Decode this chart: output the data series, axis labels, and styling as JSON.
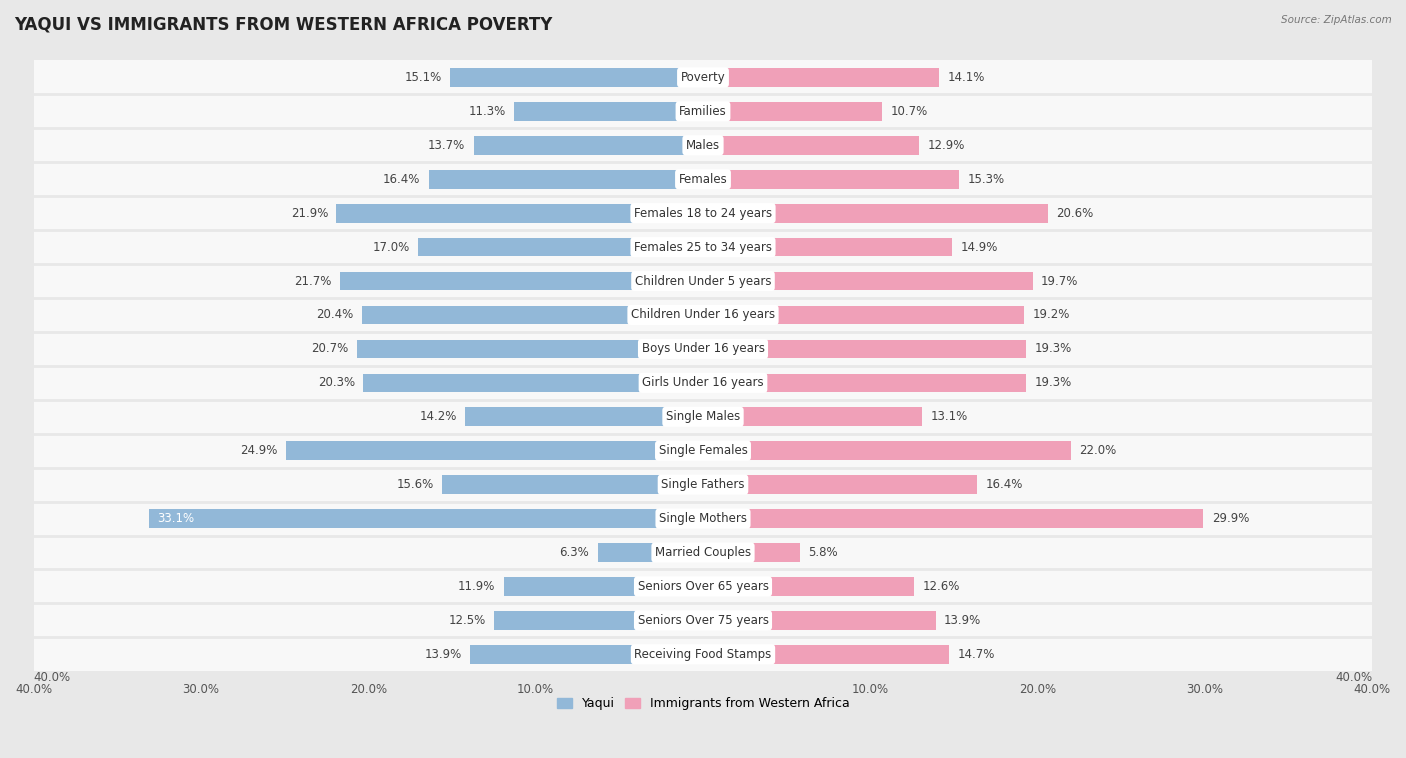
{
  "title": "YAQUI VS IMMIGRANTS FROM WESTERN AFRICA POVERTY",
  "source": "Source: ZipAtlas.com",
  "categories": [
    "Poverty",
    "Families",
    "Males",
    "Females",
    "Females 18 to 24 years",
    "Females 25 to 34 years",
    "Children Under 5 years",
    "Children Under 16 years",
    "Boys Under 16 years",
    "Girls Under 16 years",
    "Single Males",
    "Single Females",
    "Single Fathers",
    "Single Mothers",
    "Married Couples",
    "Seniors Over 65 years",
    "Seniors Over 75 years",
    "Receiving Food Stamps"
  ],
  "yaqui_values": [
    15.1,
    11.3,
    13.7,
    16.4,
    21.9,
    17.0,
    21.7,
    20.4,
    20.7,
    20.3,
    14.2,
    24.9,
    15.6,
    33.1,
    6.3,
    11.9,
    12.5,
    13.9
  ],
  "immigrants_values": [
    14.1,
    10.7,
    12.9,
    15.3,
    20.6,
    14.9,
    19.7,
    19.2,
    19.3,
    19.3,
    13.1,
    22.0,
    16.4,
    29.9,
    5.8,
    12.6,
    13.9,
    14.7
  ],
  "yaqui_color": "#92b8d8",
  "immigrants_color": "#f0a0b8",
  "background_color": "#e8e8e8",
  "bar_background": "#f8f8f8",
  "xlim": 40.0,
  "label_fontsize": 8.5,
  "title_fontsize": 12,
  "legend_labels": [
    "Yaqui",
    "Immigrants from Western Africa"
  ],
  "tick_labels": [
    "40.0%",
    "30.0%",
    "20.0%",
    "10.0%",
    "",
    "10.0%",
    "20.0%",
    "30.0%",
    "40.0%"
  ],
  "tick_positions": [
    -40,
    -30,
    -20,
    -10,
    0,
    10,
    20,
    30,
    40
  ]
}
